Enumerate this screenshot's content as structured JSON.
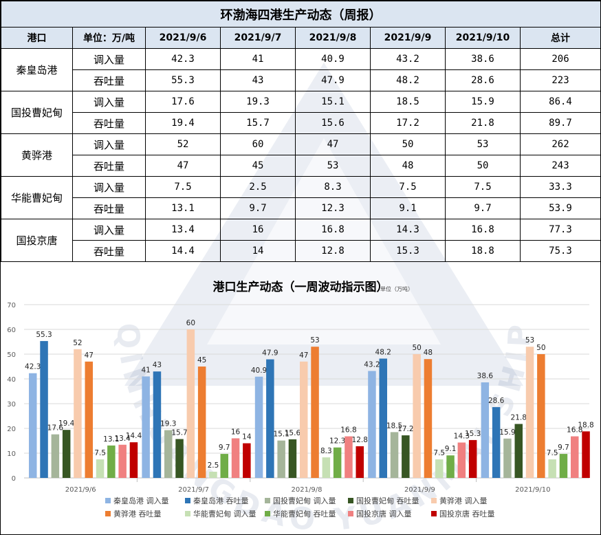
{
  "table": {
    "title": "环渤海四港生产动态（周报）",
    "headers": [
      "港口",
      "单位：万/吨",
      "2021/9/6",
      "2021/9/7",
      "2021/9/8",
      "2021/9/9",
      "2021/9/10",
      "总计"
    ],
    "ports": [
      {
        "name": "秦皇岛港",
        "rows": [
          {
            "type": "调入量",
            "values": [
              "42.3",
              "41",
              "40.9",
              "43.2",
              "38.6",
              "206"
            ]
          },
          {
            "type": "吞吐量",
            "values": [
              "55.3",
              "43",
              "47.9",
              "48.2",
              "28.6",
              "223"
            ]
          }
        ]
      },
      {
        "name": "国投曹妃甸",
        "rows": [
          {
            "type": "调入量",
            "values": [
              "17.6",
              "19.3",
              "15.1",
              "18.5",
              "15.9",
              "86.4"
            ]
          },
          {
            "type": "吞吐量",
            "values": [
              "19.4",
              "15.7",
              "15.6",
              "17.2",
              "21.8",
              "89.7"
            ]
          }
        ]
      },
      {
        "name": "黄骅港",
        "rows": [
          {
            "type": "调入量",
            "values": [
              "52",
              "60",
              "47",
              "50",
              "53",
              "262"
            ]
          },
          {
            "type": "吞吐量",
            "values": [
              "47",
              "45",
              "53",
              "48",
              "50",
              "243"
            ]
          }
        ]
      },
      {
        "name": "华能曹妃甸",
        "rows": [
          {
            "type": "调入量",
            "values": [
              "7.5",
              "2.5",
              "8.3",
              "7.5",
              "7.5",
              "33.3"
            ]
          },
          {
            "type": "吞吐量",
            "values": [
              "13.1",
              "9.7",
              "12.3",
              "9.1",
              "9.7",
              "53.9"
            ]
          }
        ]
      },
      {
        "name": "国投京唐",
        "rows": [
          {
            "type": "调入量",
            "values": [
              "13.4",
              "16",
              "16.8",
              "14.3",
              "16.8",
              "77.3"
            ]
          },
          {
            "type": "吞吐量",
            "values": [
              "14.4",
              "14",
              "12.8",
              "15.3",
              "18.8",
              "75.3"
            ]
          }
        ]
      }
    ]
  },
  "watermark_text": "QINHUANGDAO YUANMAI SHIPPING",
  "chart_data": {
    "type": "bar",
    "title": "港口生产动态（一周波动指示图）",
    "unit_note": "单位（万吨）",
    "categories": [
      "2021/9/6",
      "2021/9/7",
      "2021/9/8",
      "2021/9/9",
      "2021/9/10"
    ],
    "ylim": [
      0,
      70
    ],
    "yticks": [
      0,
      10,
      20,
      30,
      40,
      50,
      60,
      70
    ],
    "grid": true,
    "legend_position": "bottom",
    "series": [
      {
        "name": "秦皇岛港 调入量",
        "color": "#8eb4e3",
        "values": [
          42.3,
          41,
          40.9,
          43.2,
          38.6
        ]
      },
      {
        "name": "秦皇岛港 吞吐量",
        "color": "#2e75b6",
        "values": [
          55.3,
          43,
          47.9,
          48.2,
          28.6
        ]
      },
      {
        "name": "国投曹妃甸 调入量",
        "color": "#a5b59a",
        "values": [
          17.6,
          19.3,
          15.1,
          18.5,
          15.9
        ]
      },
      {
        "name": "国投曹妃甸 吞吐量",
        "color": "#375623",
        "values": [
          19.4,
          15.7,
          15.6,
          17.2,
          21.8
        ]
      },
      {
        "name": "黄骅港 调入量",
        "color": "#f8cbad",
        "values": [
          52,
          60,
          47,
          50,
          53
        ]
      },
      {
        "name": "黄骅港 吞吐量",
        "color": "#ed7d31",
        "values": [
          47,
          45,
          53,
          48,
          50
        ]
      },
      {
        "name": "华能曹妃甸 调入量",
        "color": "#c6e0b4",
        "values": [
          7.5,
          2.5,
          8.3,
          7.5,
          7.5
        ]
      },
      {
        "name": "华能曹妃甸 吞吐量",
        "color": "#70ad47",
        "values": [
          13.1,
          9.7,
          12.3,
          9.1,
          9.7
        ]
      },
      {
        "name": "国投京唐 调入量",
        "color": "#f08080",
        "values": [
          13.4,
          16,
          16.8,
          14.3,
          16.8
        ]
      },
      {
        "name": "国投京唐 吞吐量",
        "color": "#c00000",
        "values": [
          14.4,
          14,
          12.8,
          15.3,
          18.8
        ]
      }
    ]
  }
}
